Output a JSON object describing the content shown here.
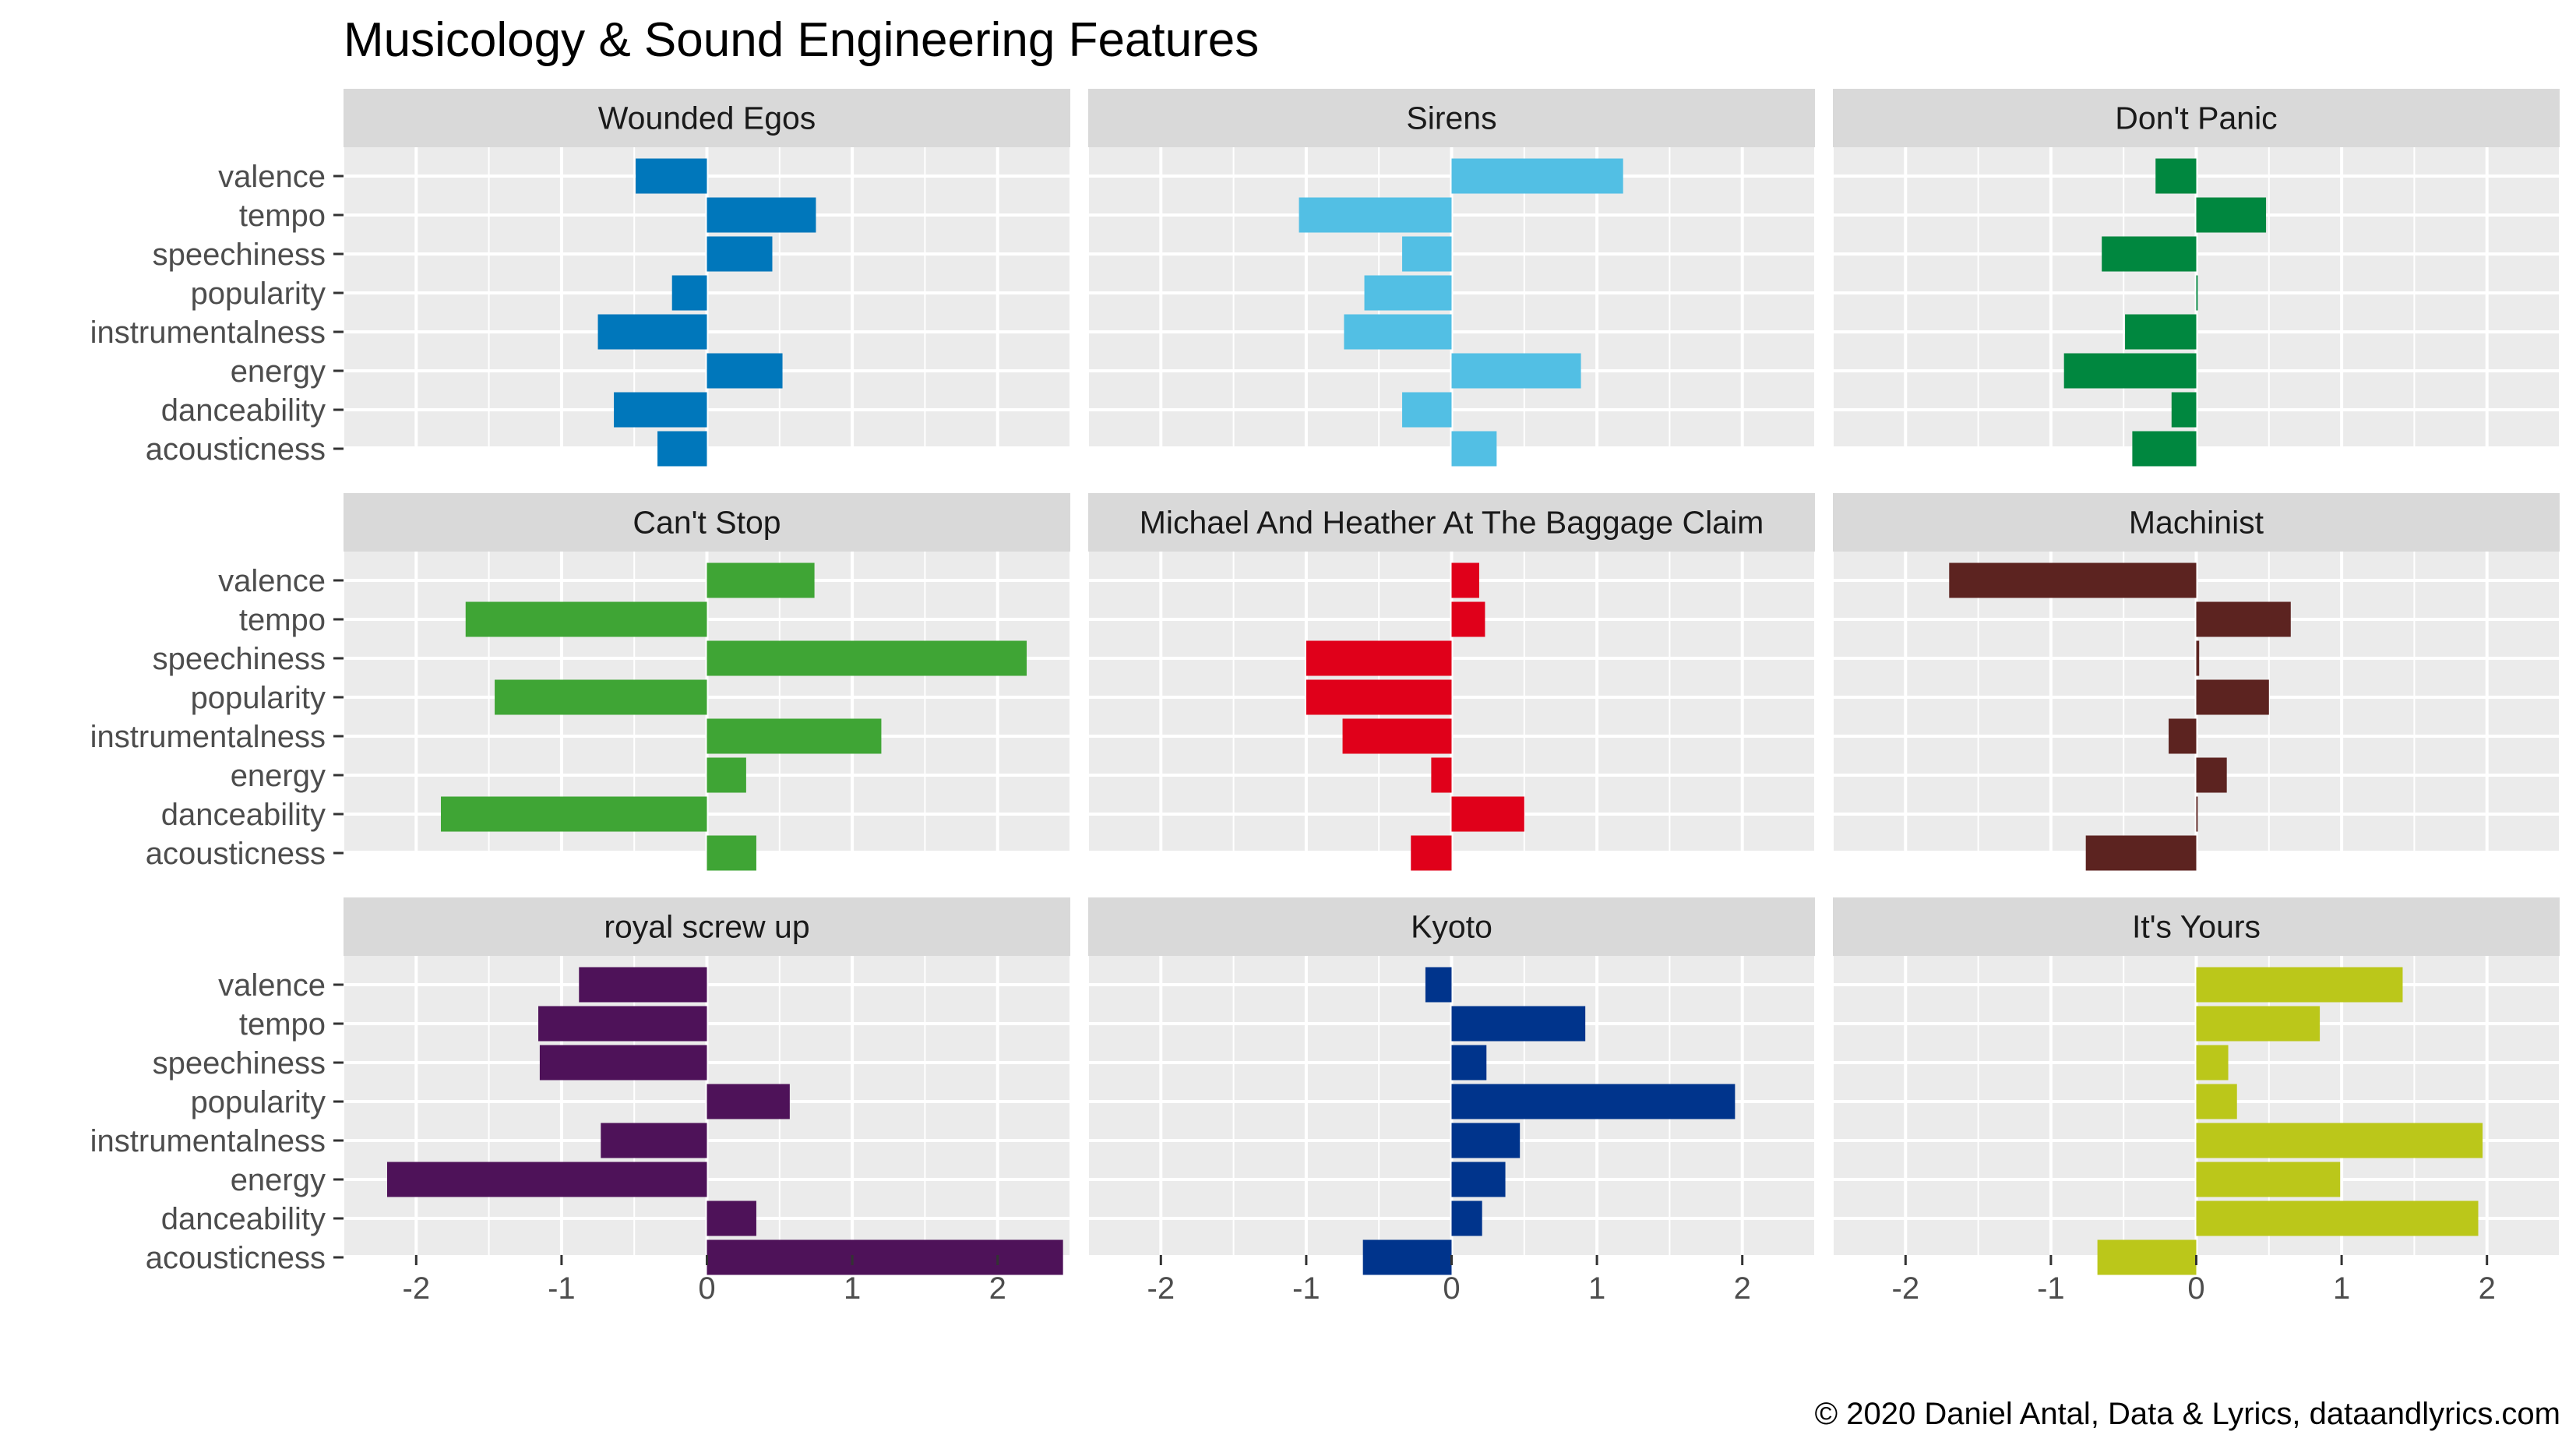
{
  "chart_data": {
    "type": "bar",
    "orientation": "horizontal",
    "layout": "facet-grid-3x3",
    "title": "Musicology & Sound Engineering Features",
    "caption": "© 2020 Daniel Antal, Data & Lyrics, dataandlyrics.com",
    "categories": [
      "valence",
      "tempo",
      "speechiness",
      "popularity",
      "instrumentalness",
      "energy",
      "danceability",
      "acousticness"
    ],
    "xlim": [
      -2.5,
      2.5
    ],
    "x_ticks": [
      -2,
      -1,
      0,
      1,
      2
    ],
    "x_tick_labels": [
      "-2",
      "-1",
      "0",
      "1",
      "2"
    ],
    "grid": true,
    "panel_background": "#ebebeb",
    "strip_background": "#d9d9d9",
    "panels": [
      {
        "name": "Wounded Egos",
        "color": "#0077bb",
        "values": [
          -0.49,
          0.75,
          0.45,
          -0.24,
          -0.75,
          0.52,
          -0.64,
          -0.34
        ]
      },
      {
        "name": "Sirens",
        "color": "#52bfe4",
        "values": [
          1.18,
          -1.05,
          -0.34,
          -0.6,
          -0.74,
          0.89,
          -0.34,
          0.31
        ]
      },
      {
        "name": "Don't Panic",
        "color": "#00873f",
        "values": [
          -0.28,
          0.48,
          -0.65,
          0.01,
          -0.49,
          -0.91,
          -0.17,
          -0.44
        ]
      },
      {
        "name": "Can't Stop",
        "color": "#3fa535",
        "values": [
          0.74,
          -1.66,
          2.2,
          -1.46,
          1.2,
          0.27,
          -1.83,
          0.34
        ]
      },
      {
        "name": "Michael And Heather At The Baggage Claim",
        "color": "#e0001a",
        "values": [
          0.19,
          0.23,
          -1.0,
          -1.0,
          -0.75,
          -0.14,
          0.5,
          -0.28
        ]
      },
      {
        "name": "Machinist",
        "color": "#5c2320",
        "values": [
          -1.7,
          0.65,
          0.02,
          0.5,
          -0.19,
          0.21,
          0.01,
          -0.76
        ]
      },
      {
        "name": "royal screw up",
        "color": "#4e1259",
        "values": [
          -0.88,
          -1.16,
          -1.15,
          0.57,
          -0.73,
          -2.2,
          0.34,
          2.45
        ]
      },
      {
        "name": "Kyoto",
        "color": "#00348c",
        "values": [
          -0.18,
          0.92,
          0.24,
          1.95,
          0.47,
          0.37,
          0.21,
          -0.61
        ]
      },
      {
        "name": "It's Yours",
        "color": "#bbc71a",
        "values": [
          1.42,
          0.85,
          0.22,
          0.28,
          1.97,
          0.99,
          1.94,
          -0.68
        ]
      }
    ]
  }
}
